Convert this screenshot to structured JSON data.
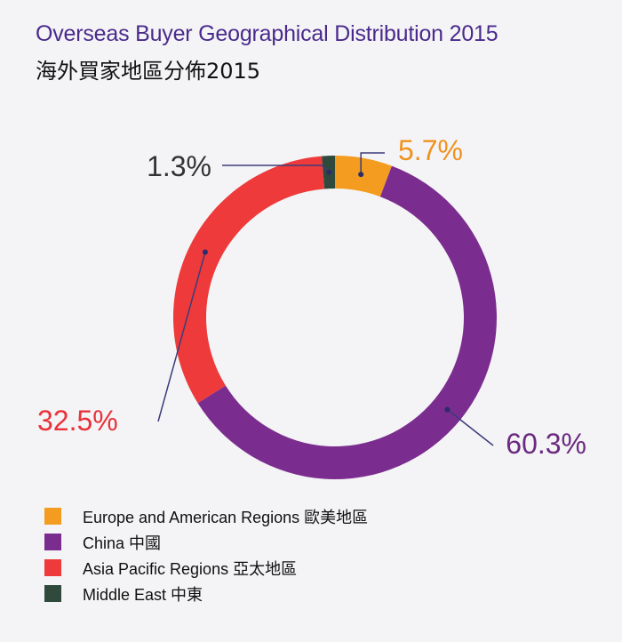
{
  "title_en": "Overseas Buyer Geographical Distribution 2015",
  "title_zh": "海外買家地區分佈2015",
  "chart_data": {
    "type": "pie",
    "donut": true,
    "title": "Overseas Buyer Geographical Distribution 2015",
    "categories": [
      "Europe and American Regions 歐美地區",
      "China 中國",
      "Asia Pacific Regions 亞太地區",
      "Middle East 中東"
    ],
    "values": [
      5.7,
      60.3,
      32.5,
      1.3
    ],
    "labels": [
      "5.7%",
      "60.3%",
      "32.5%",
      "1.3%"
    ],
    "colors": [
      "#f39c1f",
      "#7b2d8f",
      "#ee3a3a",
      "#2f4a3c"
    ],
    "label_colors": [
      "#f0921e",
      "#6b2a80",
      "#e8323a",
      "#333333"
    ],
    "legend_position": "bottom-left"
  }
}
